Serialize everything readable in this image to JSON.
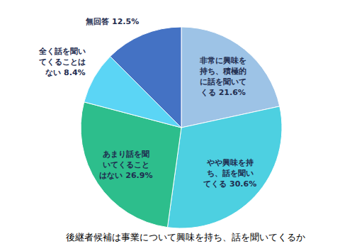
{
  "chart_data": {
    "type": "pie",
    "title": "後継者候補は事業について興味を持ち、話を聞いてくるか",
    "categories": [
      "非常に興味を持ち、積極的に話を聞いてくる",
      "やや興味を持ち、話を聞いてくる",
      "あまり話を聞いてくることはない",
      "全く話を聞いてくることはない",
      "無回答"
    ],
    "values": [
      21.6,
      30.6,
      26.9,
      8.4,
      12.5
    ],
    "value_labels": [
      "21.6%",
      "30.6%",
      "26.9%",
      "8.4%",
      "12.5%"
    ],
    "colors": [
      "#9dc3e6",
      "#4dd0e1",
      "#2dbe8c",
      "#5bd5f5",
      "#4472c4"
    ],
    "data_labels": true
  }
}
